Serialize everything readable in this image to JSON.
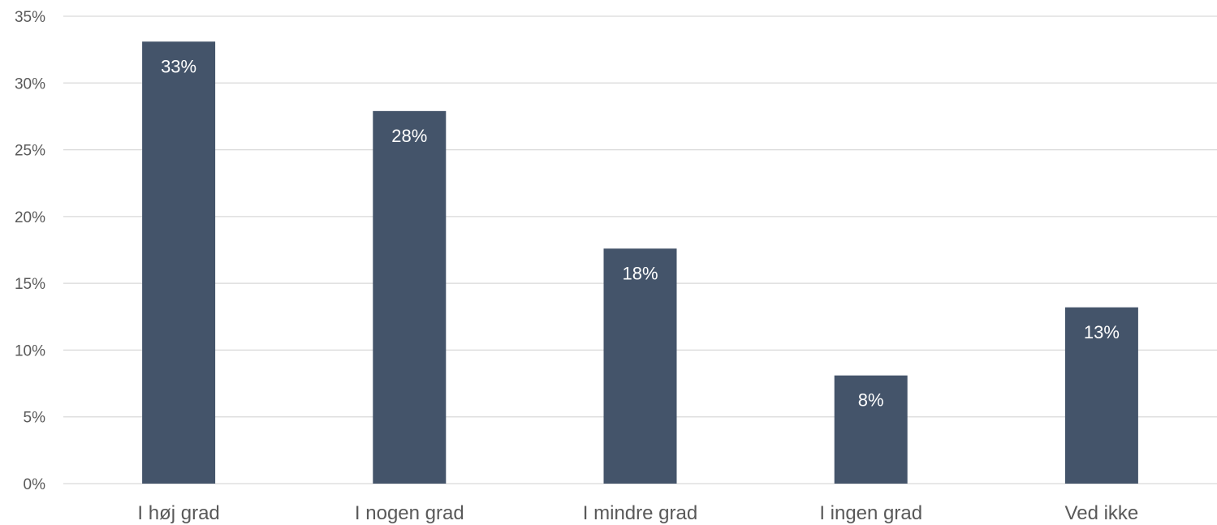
{
  "chart_data": {
    "type": "bar",
    "title": "",
    "xlabel": "",
    "ylabel": "",
    "categories": [
      "I høj grad",
      "I nogen grad",
      "I mindre grad",
      "I ingen grad",
      "Ved ikke"
    ],
    "values": [
      33.1,
      27.9,
      17.6,
      8.1,
      13.2
    ],
    "data_labels": [
      "33%",
      "28%",
      "18%",
      "8%",
      "13%"
    ],
    "ylim": [
      0,
      35
    ],
    "yticks": [
      0,
      5,
      10,
      15,
      20,
      25,
      30,
      35
    ],
    "ytick_labels": [
      "0%",
      "5%",
      "10%",
      "15%",
      "20%",
      "25%",
      "30%",
      "35%"
    ],
    "grid": true,
    "legend": "none",
    "colors": {
      "bar": "#44546a",
      "data_label": "#ffffff",
      "gridline": "#d9d9d9",
      "tick_label": "#595959"
    }
  }
}
